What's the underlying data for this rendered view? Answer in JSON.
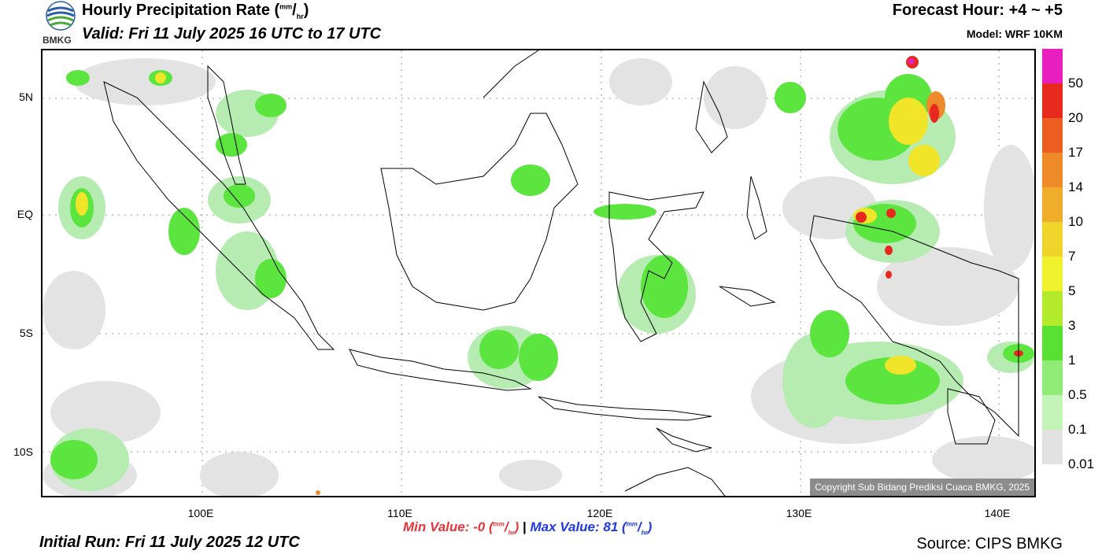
{
  "header": {
    "logo_text": "BMKG",
    "title": "Hourly Precipitation Rate (",
    "title_unit_sup": "mm",
    "title_unit_sub": "hr",
    "title_close": ")",
    "valid": "Valid: Fri 11 July 2025 16 UTC to 17 UTC",
    "forecast_hour": "Forecast Hour: +4 ~ +5",
    "model": "Model: WRF 10KM"
  },
  "map": {
    "copyright": "Copyright Sub Bidang Prediksi Cuaca BMKG, 2025",
    "lat_labels": [
      "5N",
      "EQ",
      "5S",
      "10S"
    ],
    "lon_labels": [
      "100E",
      "110E",
      "120E",
      "130E",
      "140E"
    ],
    "precip_colors": {
      "trace": "#e3e3e3",
      "light_green": "#b6ecb1",
      "green": "#5ce43f",
      "yellow_green": "#a9e52d",
      "yellow": "#f0e528",
      "orange": "#ef8a2a",
      "red": "#e8281e",
      "magenta": "#e225b5"
    }
  },
  "legend": {
    "labels": [
      "50",
      "20",
      "17",
      "14",
      "10",
      "7",
      "5",
      "3",
      "1",
      "0.5",
      "0.1",
      "0.01"
    ],
    "colors": [
      "#e81fbe",
      "#e8291e",
      "#ec5d22",
      "#ee8a27",
      "#f0ac2b",
      "#f1d42b",
      "#f1f22e",
      "#b3ea2b",
      "#58e032",
      "#91ec77",
      "#c3f3b6",
      "#e2e2e2"
    ]
  },
  "footer": {
    "min_label": "Min Value:  -0 (",
    "min_unit_sup": "mm",
    "min_unit_sub": "hr",
    "min_close": ")",
    "separator": "|",
    "max_label": "Max Value:  81 (",
    "max_unit_sup": "mm",
    "max_unit_sub": "hr",
    "max_close": ")",
    "initial_run": "Initial Run: Fri 11 July 2025 12 UTC",
    "source": "Source: CIPS BMKG"
  }
}
